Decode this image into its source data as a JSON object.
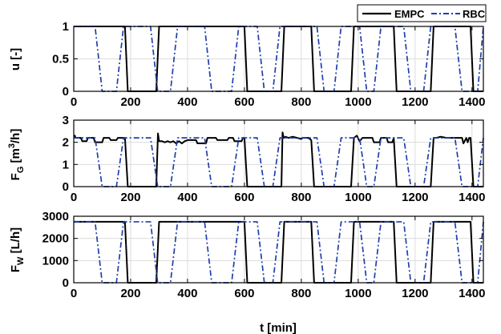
{
  "chart_data": [
    {
      "type": "line",
      "ylabel": "u [-]",
      "xlim": [
        0,
        1440
      ],
      "ylim": [
        0,
        1
      ],
      "x_ticks": [
        0,
        200,
        400,
        600,
        800,
        1000,
        1200,
        1400
      ],
      "x_tick_labels": [
        "0",
        "200",
        "400",
        "600",
        "800",
        "1000",
        "1200",
        "1400"
      ],
      "y_ticks": [
        0,
        0.5,
        1
      ],
      "y_tick_labels": [
        "0",
        "0.5",
        "1"
      ],
      "grid": true,
      "series": [
        {
          "name": "EMPC",
          "color": "#000000",
          "style": "solid",
          "x": [
            0,
            180,
            190,
            290,
            300,
            600,
            610,
            730,
            740,
            835,
            845,
            975,
            985,
            1125,
            1135,
            1255,
            1265,
            1395,
            1405,
            1440
          ],
          "y": [
            1,
            1,
            0,
            0,
            1,
            1,
            0,
            0,
            1,
            1,
            0,
            0,
            1,
            1,
            0,
            0,
            1,
            1,
            0,
            0
          ]
        },
        {
          "name": "RBC",
          "color": "#1f3fae",
          "style": "dashdot",
          "x": [
            0,
            75,
            100,
            150,
            175,
            270,
            295,
            340,
            365,
            460,
            485,
            555,
            580,
            645,
            670,
            700,
            725,
            855,
            880,
            915,
            940,
            1005,
            1030,
            1055,
            1080,
            1160,
            1185,
            1230,
            1255,
            1340,
            1365,
            1420,
            1440
          ],
          "y": [
            1,
            1,
            0,
            0,
            1,
            1,
            0,
            0,
            1,
            1,
            0,
            0,
            1,
            1,
            0,
            0,
            1,
            1,
            0,
            0,
            1,
            1,
            0,
            0,
            1,
            1,
            0,
            0,
            1,
            1,
            0,
            0,
            1
          ]
        }
      ]
    },
    {
      "type": "line",
      "ylabel": "F_G [m^3/h]",
      "xlim": [
        0,
        1440
      ],
      "ylim": [
        0,
        3
      ],
      "x_ticks": [
        0,
        200,
        400,
        600,
        800,
        1000,
        1200,
        1400
      ],
      "x_tick_labels": [
        "0",
        "200",
        "400",
        "600",
        "800",
        "1000",
        "1200",
        "1400"
      ],
      "y_ticks": [
        0,
        1,
        2,
        3
      ],
      "y_tick_labels": [
        "0",
        "1",
        "2",
        "3"
      ],
      "grid": true,
      "series": [
        {
          "name": "EMPC",
          "color": "#000000",
          "style": "solid",
          "x": [
            0,
            4,
            6,
            25,
            30,
            45,
            50,
            70,
            75,
            100,
            105,
            125,
            130,
            150,
            155,
            175,
            180,
            190,
            290,
            296,
            300,
            310,
            320,
            330,
            340,
            350,
            360,
            370,
            380,
            390,
            400,
            430,
            435,
            465,
            470,
            500,
            505,
            540,
            545,
            560,
            565,
            590,
            595,
            600,
            610,
            730,
            734,
            738,
            745,
            755,
            770,
            800,
            805,
            825,
            835,
            845,
            975,
            985,
            995,
            1005,
            1015,
            1025,
            1050,
            1055,
            1075,
            1080,
            1100,
            1105,
            1120,
            1125,
            1135,
            1255,
            1265,
            1275,
            1290,
            1310,
            1330,
            1350,
            1365,
            1370,
            1380,
            1385,
            1390,
            1395,
            1405,
            1440
          ],
          "y": [
            2.3,
            2.3,
            2.2,
            2.2,
            2.05,
            2.05,
            2.2,
            2.2,
            2.0,
            2.0,
            2.2,
            2.2,
            2.1,
            2.1,
            2.2,
            2.2,
            2.2,
            0,
            0,
            2.4,
            2.05,
            2.05,
            2.0,
            2.05,
            2.0,
            2.05,
            1.95,
            2.05,
            1.95,
            2.05,
            2.1,
            2.1,
            1.95,
            1.95,
            2.2,
            2.2,
            2.1,
            2.1,
            2.2,
            2.2,
            2.05,
            2.05,
            2.2,
            2.2,
            0,
            0,
            2.45,
            2.2,
            2.25,
            2.2,
            2.25,
            2.15,
            2.2,
            2.2,
            2.1,
            0,
            0,
            2.2,
            2.3,
            2.05,
            2.2,
            2.2,
            2.2,
            2.0,
            2.0,
            2.2,
            2.2,
            2.0,
            2.0,
            2.2,
            0,
            0,
            2.2,
            2.2,
            2.25,
            2.2,
            2.2,
            2.2,
            2.2,
            1.95,
            2.2,
            2.0,
            2.2,
            2.2,
            0,
            0
          ]
        },
        {
          "name": "RBC",
          "color": "#1f3fae",
          "style": "dashdot",
          "x": [
            0,
            75,
            100,
            150,
            175,
            270,
            295,
            340,
            365,
            460,
            485,
            555,
            580,
            645,
            670,
            700,
            725,
            855,
            880,
            915,
            940,
            1005,
            1030,
            1055,
            1080,
            1160,
            1185,
            1230,
            1255,
            1340,
            1365,
            1420,
            1440
          ],
          "y": [
            2.2,
            2.2,
            0,
            0,
            2.2,
            2.2,
            0,
            0,
            2.2,
            2.2,
            0,
            0,
            2.2,
            2.2,
            0,
            0,
            2.2,
            2.2,
            0,
            0,
            2.2,
            2.2,
            0,
            0,
            2.2,
            2.2,
            0,
            0,
            2.2,
            2.2,
            0,
            0,
            2.2
          ]
        }
      ]
    },
    {
      "type": "line",
      "ylabel": "F_W [L/h]",
      "xlabel": "t [min]",
      "xlim": [
        0,
        1440
      ],
      "ylim": [
        0,
        3000
      ],
      "x_ticks": [
        0,
        200,
        400,
        600,
        800,
        1000,
        1200,
        1400
      ],
      "x_tick_labels": [
        "0",
        "200",
        "400",
        "600",
        "800",
        "1000",
        "1200",
        "1400"
      ],
      "y_ticks": [
        0,
        1000,
        2000,
        3000
      ],
      "y_tick_labels": [
        "0",
        "1000",
        "2000",
        "3000"
      ],
      "grid": true,
      "series": [
        {
          "name": "EMPC",
          "color": "#000000",
          "style": "solid",
          "x": [
            0,
            180,
            190,
            290,
            300,
            600,
            610,
            730,
            740,
            835,
            845,
            975,
            985,
            1125,
            1135,
            1255,
            1265,
            1395,
            1405,
            1440
          ],
          "y": [
            2750,
            2750,
            0,
            0,
            2750,
            2750,
            0,
            0,
            2750,
            2750,
            0,
            0,
            2750,
            2750,
            0,
            0,
            2750,
            2750,
            0,
            0
          ]
        },
        {
          "name": "RBC",
          "color": "#1f3fae",
          "style": "dashdot",
          "x": [
            0,
            75,
            100,
            150,
            175,
            270,
            295,
            340,
            365,
            460,
            485,
            555,
            580,
            645,
            670,
            700,
            725,
            855,
            880,
            915,
            940,
            1005,
            1030,
            1055,
            1080,
            1160,
            1185,
            1230,
            1255,
            1340,
            1365,
            1420,
            1440
          ],
          "y": [
            2750,
            2750,
            0,
            0,
            2750,
            2750,
            0,
            0,
            2750,
            2750,
            0,
            0,
            2750,
            2750,
            0,
            0,
            2750,
            2750,
            0,
            0,
            2750,
            2750,
            0,
            0,
            2750,
            2750,
            0,
            0,
            2750,
            2750,
            0,
            0,
            2750
          ]
        }
      ]
    }
  ],
  "legend": {
    "position": "top-right",
    "entries": [
      {
        "label": "EMPC",
        "color": "#000000",
        "style": "solid"
      },
      {
        "label": "RBC",
        "color": "#1f3fae",
        "style": "dashdot"
      }
    ]
  },
  "labels": {
    "p1_ylabel": "u [-]",
    "p2_ylabel_main": "F",
    "p2_ylabel_sub": "G",
    "p2_ylabel_rest": " [m",
    "p2_ylabel_sup": "3",
    "p2_ylabel_end": "/h]",
    "p3_ylabel_main": "F",
    "p3_ylabel_sub": "W",
    "p3_ylabel_rest": " [L/h]",
    "xlabel": "t [min]"
  }
}
